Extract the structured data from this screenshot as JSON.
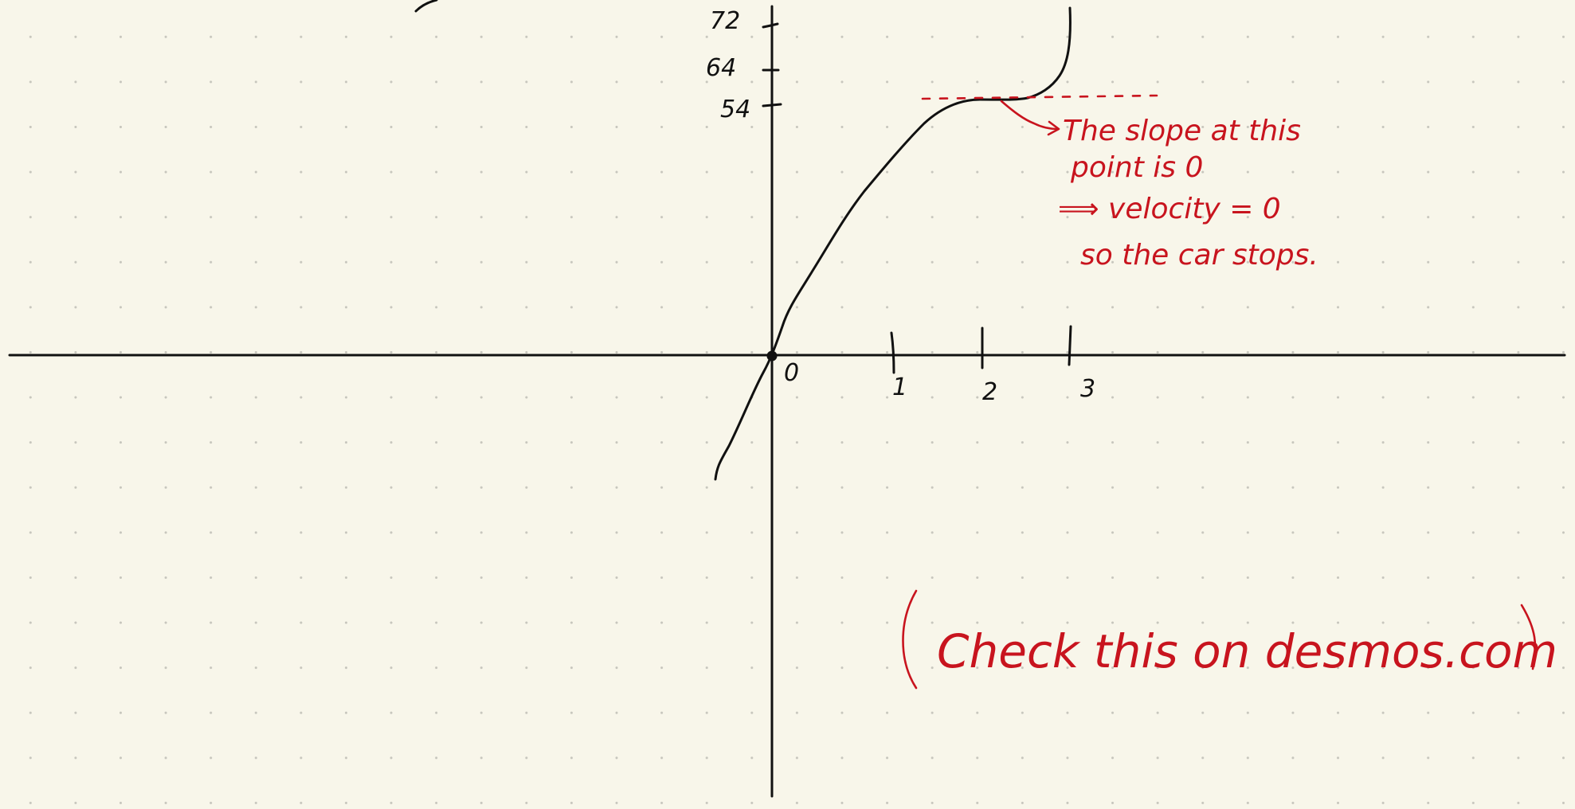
{
  "graph": {
    "y_ticks": [
      "72",
      "64",
      "54"
    ],
    "x_ticks": [
      "0",
      "1",
      "2",
      "3"
    ]
  },
  "annotation": {
    "line1": "The slope at this",
    "line2": "point is 0",
    "line3": "⟹ velocity = 0",
    "line4": "so the car stops."
  },
  "note": {
    "text": "Check this on desmos.com"
  },
  "colors": {
    "ink": "#111111",
    "red_ink": "#c8141e",
    "paper": "#f8f6ea"
  }
}
